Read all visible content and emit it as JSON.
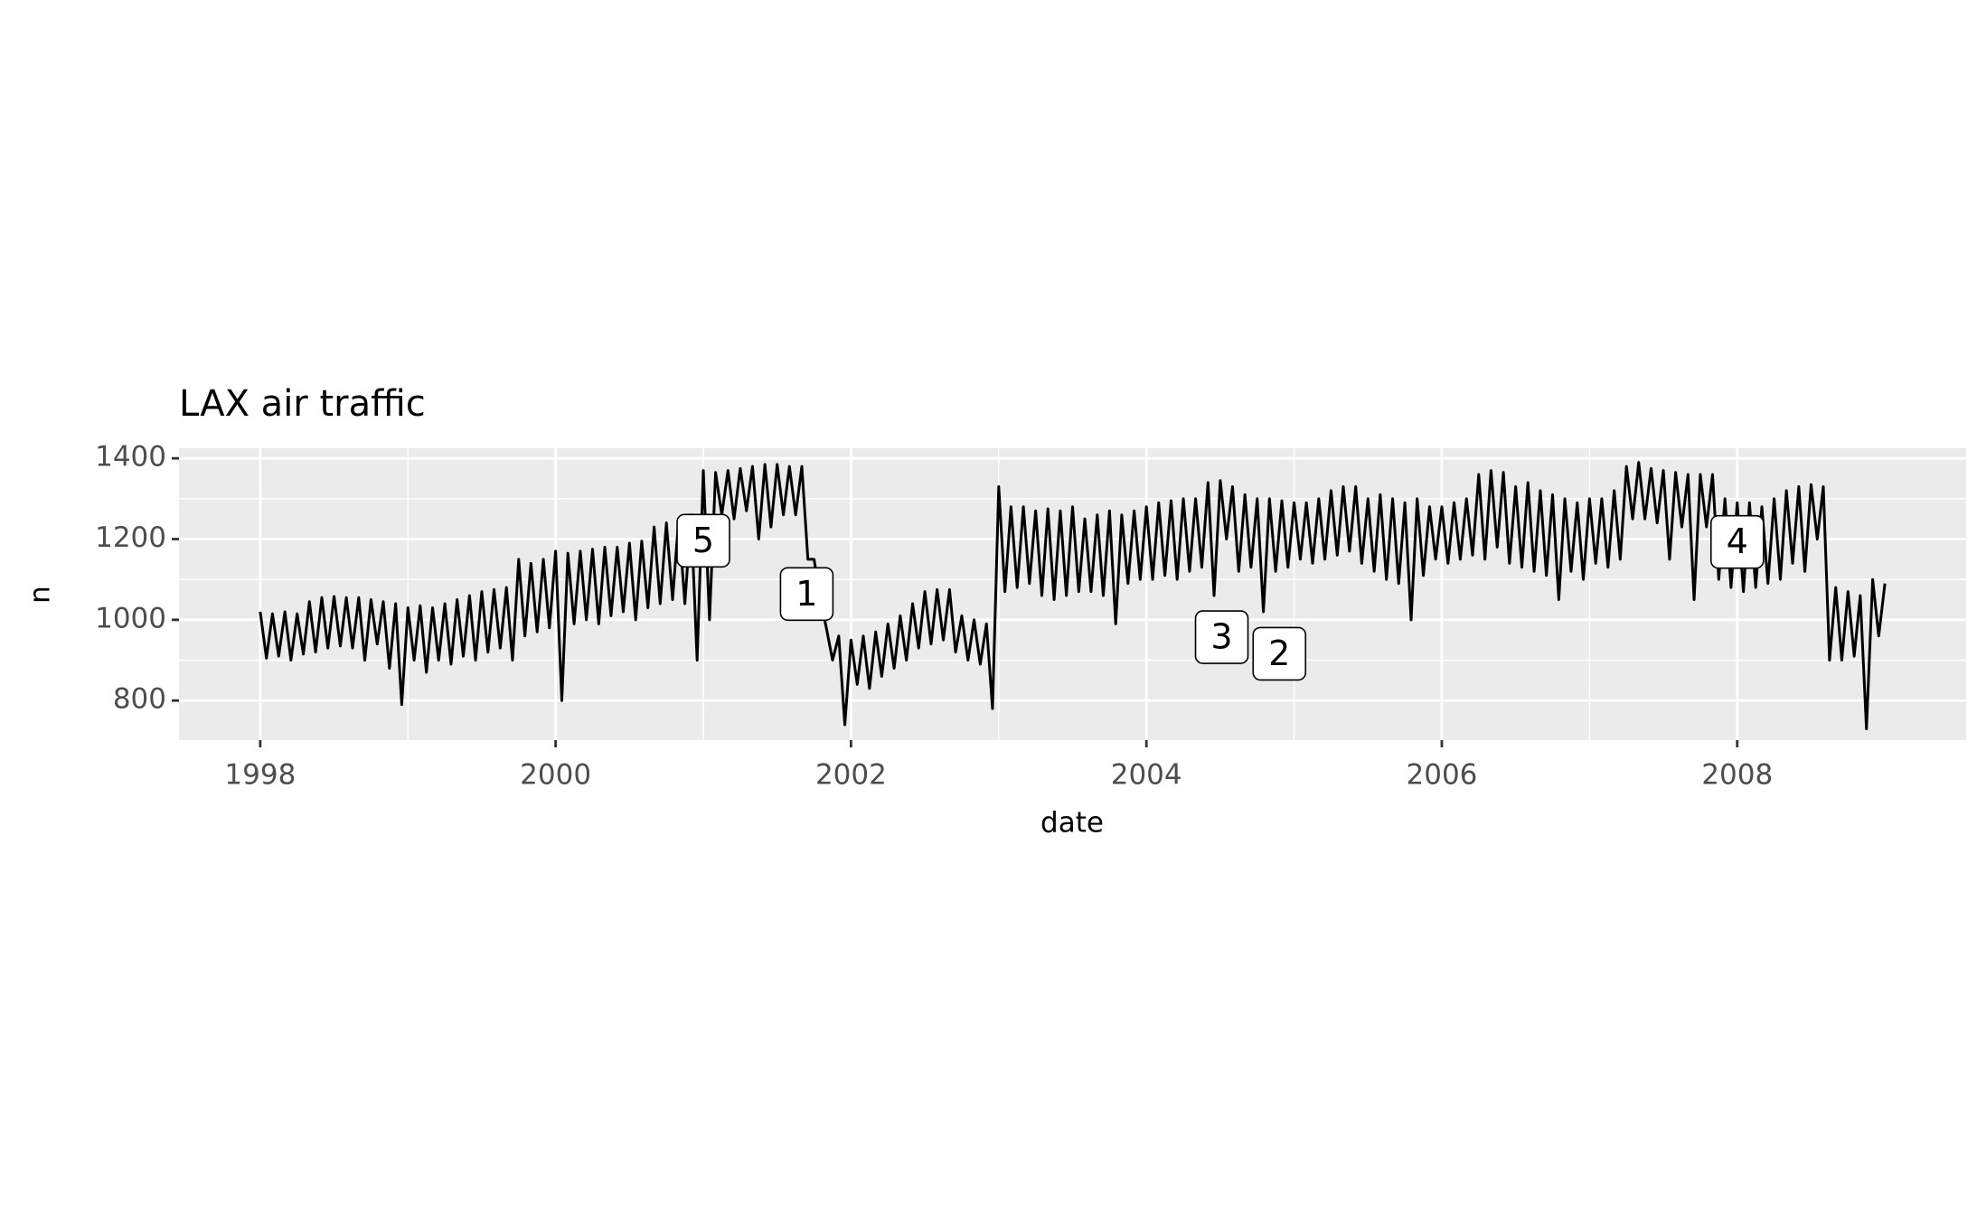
{
  "chart_data": {
    "type": "line",
    "title": "LAX air traffic",
    "x_label": "date",
    "y_label": "n",
    "xlim": [
      1997.45,
      2009.55
    ],
    "xticks": [
      1998,
      2000,
      2002,
      2004,
      2006,
      2008
    ],
    "ylim": [
      702,
      1425
    ],
    "yticks": [
      800,
      1000,
      1200,
      1400
    ],
    "grid": true,
    "minor_grid": true,
    "series": [
      {
        "color": "#000000",
        "x": [
          1998.0,
          1998.042,
          1998.083,
          1998.125,
          1998.167,
          1998.208,
          1998.25,
          1998.292,
          1998.333,
          1998.375,
          1998.417,
          1998.458,
          1998.5,
          1998.542,
          1998.583,
          1998.625,
          1998.667,
          1998.708,
          1998.75,
          1998.792,
          1998.833,
          1998.875,
          1998.917,
          1998.958,
          1999.0,
          1999.042,
          1999.083,
          1999.125,
          1999.167,
          1999.208,
          1999.25,
          1999.292,
          1999.333,
          1999.375,
          1999.417,
          1999.458,
          1999.5,
          1999.542,
          1999.583,
          1999.625,
          1999.667,
          1999.708,
          1999.75,
          1999.792,
          1999.833,
          1999.875,
          1999.917,
          1999.958,
          2000.0,
          2000.042,
          2000.083,
          2000.125,
          2000.167,
          2000.208,
          2000.25,
          2000.292,
          2000.333,
          2000.375,
          2000.417,
          2000.458,
          2000.5,
          2000.542,
          2000.583,
          2000.625,
          2000.667,
          2000.708,
          2000.75,
          2000.792,
          2000.833,
          2000.875,
          2000.917,
          2000.958,
          2001.0,
          2001.042,
          2001.083,
          2001.125,
          2001.167,
          2001.208,
          2001.25,
          2001.292,
          2001.333,
          2001.375,
          2001.417,
          2001.458,
          2001.5,
          2001.542,
          2001.583,
          2001.625,
          2001.667,
          2001.708,
          2001.75,
          2001.792,
          2001.833,
          2001.875,
          2001.917,
          2001.958,
          2002.0,
          2002.042,
          2002.083,
          2002.125,
          2002.167,
          2002.208,
          2002.25,
          2002.292,
          2002.333,
          2002.375,
          2002.417,
          2002.458,
          2002.5,
          2002.542,
          2002.583,
          2002.625,
          2002.667,
          2002.708,
          2002.75,
          2002.792,
          2002.833,
          2002.875,
          2002.917,
          2002.958,
          2003.0,
          2003.042,
          2003.083,
          2003.125,
          2003.167,
          2003.208,
          2003.25,
          2003.292,
          2003.333,
          2003.375,
          2003.417,
          2003.458,
          2003.5,
          2003.542,
          2003.583,
          2003.625,
          2003.667,
          2003.708,
          2003.75,
          2003.792,
          2003.833,
          2003.875,
          2003.917,
          2003.958,
          2004.0,
          2004.042,
          2004.083,
          2004.125,
          2004.167,
          2004.208,
          2004.25,
          2004.292,
          2004.333,
          2004.375,
          2004.417,
          2004.458,
          2004.5,
          2004.542,
          2004.583,
          2004.625,
          2004.667,
          2004.708,
          2004.75,
          2004.792,
          2004.833,
          2004.875,
          2004.917,
          2004.958,
          2005.0,
          2005.042,
          2005.083,
          2005.125,
          2005.167,
          2005.208,
          2005.25,
          2005.292,
          2005.333,
          2005.375,
          2005.417,
          2005.458,
          2005.5,
          2005.542,
          2005.583,
          2005.625,
          2005.667,
          2005.708,
          2005.75,
          2005.792,
          2005.833,
          2005.875,
          2005.917,
          2005.958,
          2006.0,
          2006.042,
          2006.083,
          2006.125,
          2006.167,
          2006.208,
          2006.25,
          2006.292,
          2006.333,
          2006.375,
          2006.417,
          2006.458,
          2006.5,
          2006.542,
          2006.583,
          2006.625,
          2006.667,
          2006.708,
          2006.75,
          2006.792,
          2006.833,
          2006.875,
          2006.917,
          2006.958,
          2007.0,
          2007.042,
          2007.083,
          2007.125,
          2007.167,
          2007.208,
          2007.25,
          2007.292,
          2007.333,
          2007.375,
          2007.417,
          2007.458,
          2007.5,
          2007.542,
          2007.583,
          2007.625,
          2007.667,
          2007.708,
          2007.75,
          2007.792,
          2007.833,
          2007.875,
          2007.917,
          2007.958,
          2008.0,
          2008.042,
          2008.083,
          2008.125,
          2008.167,
          2008.208,
          2008.25,
          2008.292,
          2008.333,
          2008.375,
          2008.417,
          2008.458,
          2008.5,
          2008.542,
          2008.583,
          2008.625,
          2008.667,
          2008.708,
          2008.75,
          2008.792,
          2008.833,
          2008.875,
          2008.917,
          2008.958,
          2009.0
        ],
        "values": [
          1020,
          905,
          1015,
          910,
          1020,
          900,
          1015,
          915,
          1045,
          920,
          1055,
          930,
          1058,
          935,
          1055,
          930,
          1055,
          900,
          1050,
          940,
          1045,
          880,
          1040,
          790,
          1030,
          900,
          1035,
          870,
          1030,
          900,
          1040,
          890,
          1050,
          910,
          1060,
          900,
          1070,
          920,
          1075,
          930,
          1080,
          900,
          1150,
          960,
          1140,
          970,
          1150,
          980,
          1170,
          800,
          1165,
          990,
          1170,
          1000,
          1175,
          990,
          1180,
          1010,
          1180,
          1020,
          1190,
          1000,
          1195,
          1030,
          1230,
          1040,
          1240,
          1050,
          1250,
          1040,
          1260,
          900,
          1370,
          1000,
          1365,
          1260,
          1370,
          1250,
          1375,
          1270,
          1380,
          1200,
          1385,
          1230,
          1385,
          1260,
          1380,
          1260,
          1380,
          1150,
          1150,
          1050,
          980,
          900,
          960,
          740,
          950,
          840,
          960,
          830,
          970,
          860,
          990,
          880,
          1010,
          900,
          1040,
          930,
          1070,
          940,
          1075,
          950,
          1075,
          920,
          1010,
          900,
          1000,
          890,
          990,
          780,
          1330,
          1070,
          1280,
          1080,
          1280,
          1090,
          1270,
          1060,
          1275,
          1050,
          1270,
          1060,
          1280,
          1070,
          1250,
          1070,
          1260,
          1060,
          1270,
          990,
          1260,
          1090,
          1270,
          1100,
          1280,
          1100,
          1290,
          1110,
          1295,
          1100,
          1300,
          1120,
          1300,
          1130,
          1340,
          1060,
          1345,
          1200,
          1330,
          1120,
          1310,
          1130,
          1300,
          1020,
          1300,
          1120,
          1295,
          1130,
          1290,
          1150,
          1290,
          1140,
          1300,
          1150,
          1320,
          1160,
          1330,
          1170,
          1330,
          1140,
          1300,
          1120,
          1310,
          1100,
          1300,
          1090,
          1290,
          1000,
          1300,
          1110,
          1280,
          1150,
          1280,
          1140,
          1290,
          1150,
          1300,
          1160,
          1360,
          1150,
          1370,
          1180,
          1365,
          1140,
          1330,
          1130,
          1340,
          1120,
          1320,
          1110,
          1310,
          1050,
          1300,
          1120,
          1290,
          1100,
          1300,
          1140,
          1300,
          1130,
          1320,
          1150,
          1380,
          1250,
          1390,
          1250,
          1375,
          1240,
          1370,
          1150,
          1365,
          1230,
          1360,
          1050,
          1360,
          1230,
          1360,
          1100,
          1300,
          1080,
          1290,
          1070,
          1290,
          1080,
          1280,
          1090,
          1300,
          1100,
          1320,
          1140,
          1330,
          1120,
          1335,
          1200,
          1330,
          900,
          1080,
          900,
          1070,
          910,
          1060,
          730,
          1100,
          960,
          1090
        ]
      }
    ],
    "annotations": [
      {
        "label": "5",
        "x": 2001.0,
        "y": 1196
      },
      {
        "label": "1",
        "x": 2001.7,
        "y": 1064
      },
      {
        "label": "3",
        "x": 2004.51,
        "y": 957
      },
      {
        "label": "2",
        "x": 2004.9,
        "y": 916
      },
      {
        "label": "4",
        "x": 2008.0,
        "y": 1193
      }
    ]
  }
}
